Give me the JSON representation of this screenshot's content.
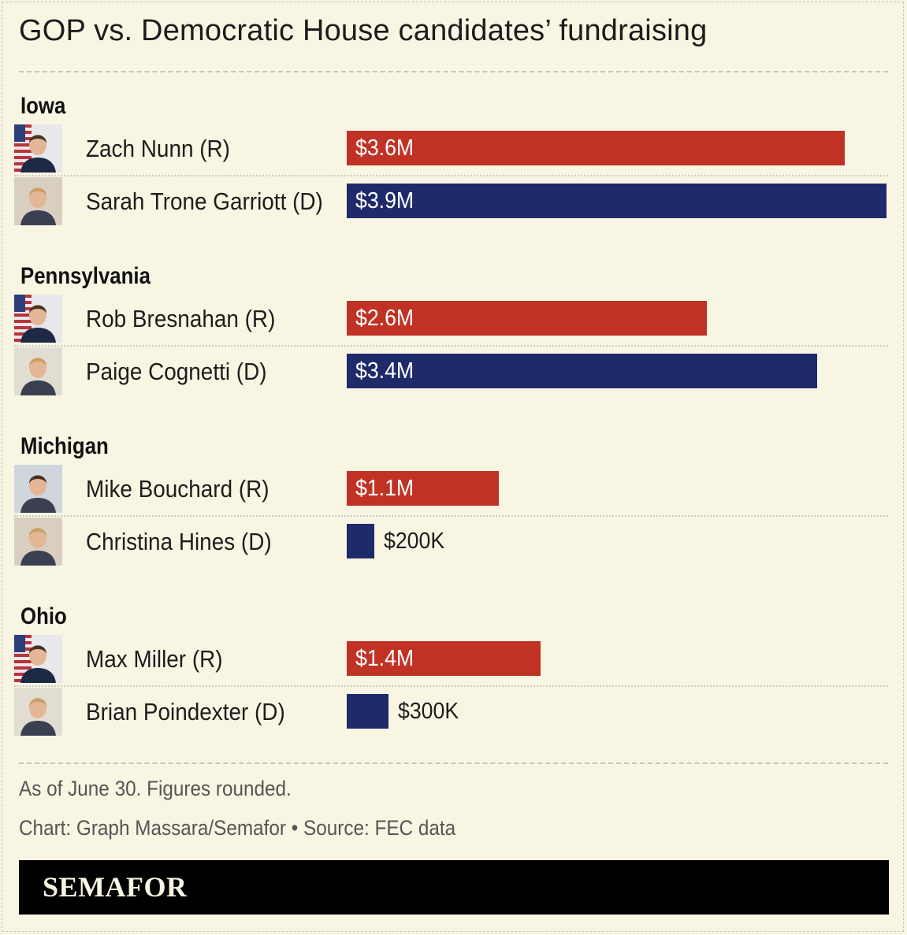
{
  "title": "GOP vs. Democratic House candidates’ fundraising",
  "notes": {
    "as_of": "As of June 30. Figures rounded.",
    "credit": "Chart: Graph Massara/Semafor • Source: FEC data"
  },
  "brand": "SEMAFOR",
  "colors": {
    "republican": "#c03224",
    "democrat": "#1f2a6b",
    "background": "#f8f5e3"
  },
  "chart_data": {
    "type": "bar",
    "orientation": "horizontal",
    "unit": "USD",
    "xlim": [
      0,
      3900000
    ],
    "groups": [
      {
        "state": "Iowa",
        "candidates": [
          {
            "name": "Zach Nunn (R)",
            "party": "R",
            "value": 3600000,
            "label": "$3.6M",
            "photo": "candidate-photo-flag"
          },
          {
            "name": "Sarah Trone Garriott (D)",
            "party": "D",
            "value": 3900000,
            "label": "$3.9M",
            "photo": "candidate-photo"
          }
        ]
      },
      {
        "state": "Pennsylvania",
        "candidates": [
          {
            "name": "Rob Bresnahan (R)",
            "party": "R",
            "value": 2600000,
            "label": "$2.6M",
            "photo": "candidate-photo-flag"
          },
          {
            "name": "Paige Cognetti (D)",
            "party": "D",
            "value": 3400000,
            "label": "$3.4M",
            "photo": "candidate-photo"
          }
        ]
      },
      {
        "state": "Michigan",
        "candidates": [
          {
            "name": "Mike Bouchard (R)",
            "party": "R",
            "value": 1100000,
            "label": "$1.1M",
            "photo": "candidate-photo"
          },
          {
            "name": "Christina Hines (D)",
            "party": "D",
            "value": 200000,
            "label": "$200K",
            "photo": "candidate-photo"
          }
        ]
      },
      {
        "state": "Ohio",
        "candidates": [
          {
            "name": "Max Miller (R)",
            "party": "R",
            "value": 1400000,
            "label": "$1.4M",
            "photo": "candidate-photo-flag"
          },
          {
            "name": "Brian Poindexter (D)",
            "party": "D",
            "value": 300000,
            "label": "$300K",
            "photo": "candidate-photo"
          }
        ]
      }
    ]
  }
}
